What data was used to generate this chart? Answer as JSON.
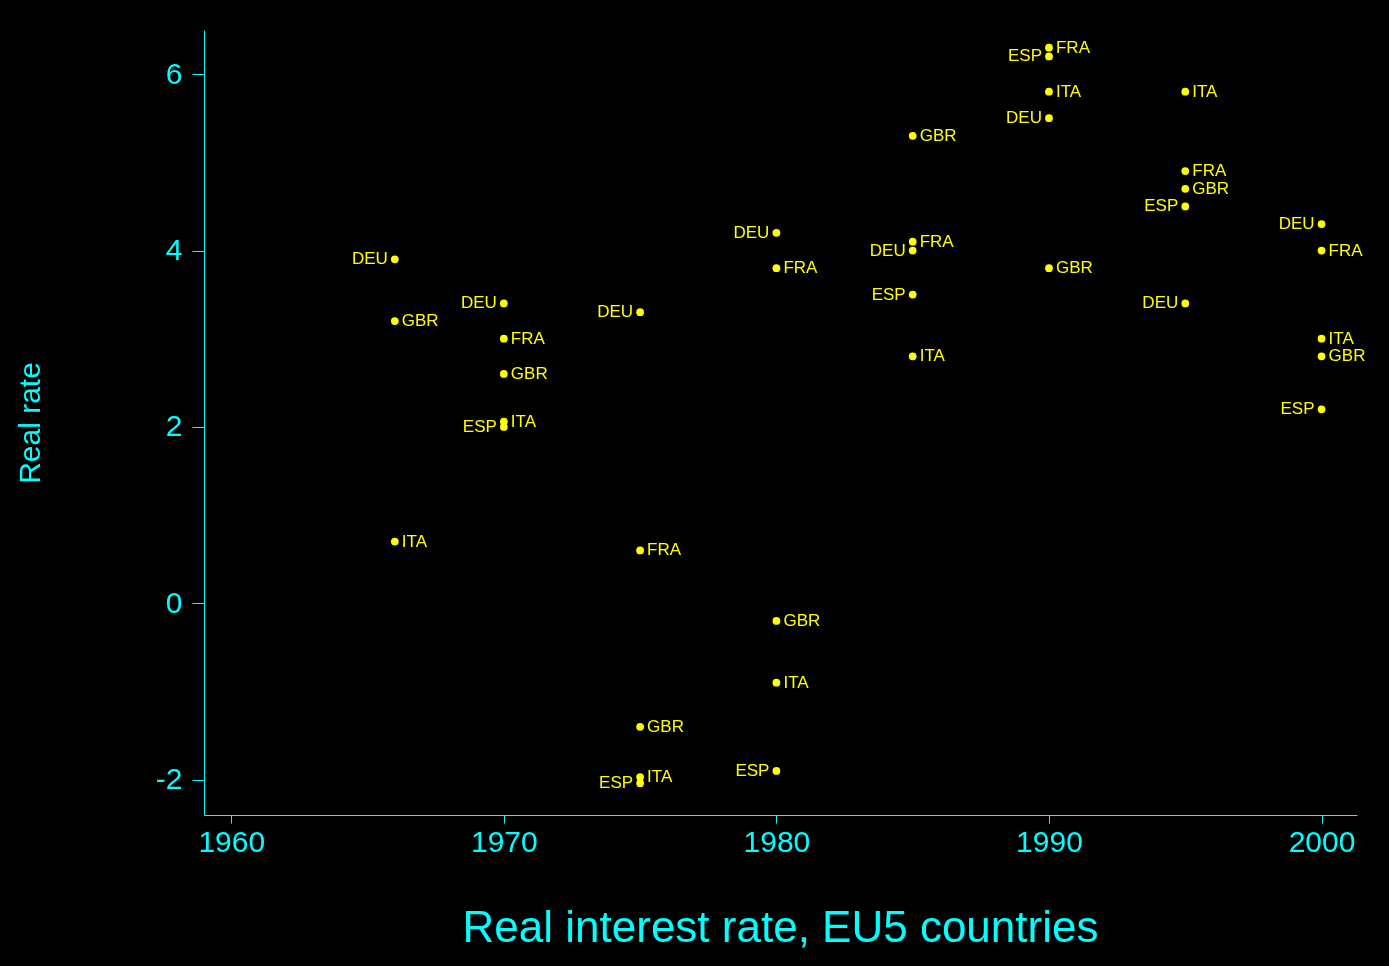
{
  "chart_data": {
    "type": "scatter",
    "title": "Real interest rate, EU5 countries",
    "ylabel": "Real rate",
    "x": [
      1966,
      1970,
      1975,
      1980,
      1985,
      1990,
      1995,
      2000
    ],
    "series": [
      {
        "name": "DEU",
        "color": "#ffff00",
        "values": [
          3.9,
          3.4,
          3.3,
          4.2,
          4.0,
          5.5,
          3.4,
          4.3
        ]
      },
      {
        "name": "GBR",
        "color": "#ffff00",
        "values": [
          3.2,
          2.6,
          -1.4,
          -0.2,
          5.3,
          3.8,
          4.7,
          2.8
        ]
      },
      {
        "name": "ITA",
        "color": "#ffff00",
        "values": [
          0.7,
          2.06,
          -1.97,
          -0.9,
          2.8,
          5.8,
          5.8,
          3.0
        ]
      },
      {
        "name": "FRA",
        "color": "#ffff00",
        "values": [
          null,
          3.0,
          0.6,
          3.8,
          4.1,
          6.3,
          4.9,
          4.0
        ]
      },
      {
        "name": "ESP",
        "color": "#ffff00",
        "values": [
          null,
          2.0,
          -2.04,
          -1.9,
          3.5,
          6.2,
          4.5,
          2.2
        ]
      }
    ],
    "marker": "circle",
    "xlim": [
      1959,
      2001.3
    ],
    "ylim": [
      -2.4,
      6.5
    ],
    "xticks": [
      1960,
      1970,
      1980,
      1990,
      2000
    ],
    "yticks": [
      -2,
      0,
      2,
      4,
      6
    ],
    "grid": false,
    "legend": false
  }
}
